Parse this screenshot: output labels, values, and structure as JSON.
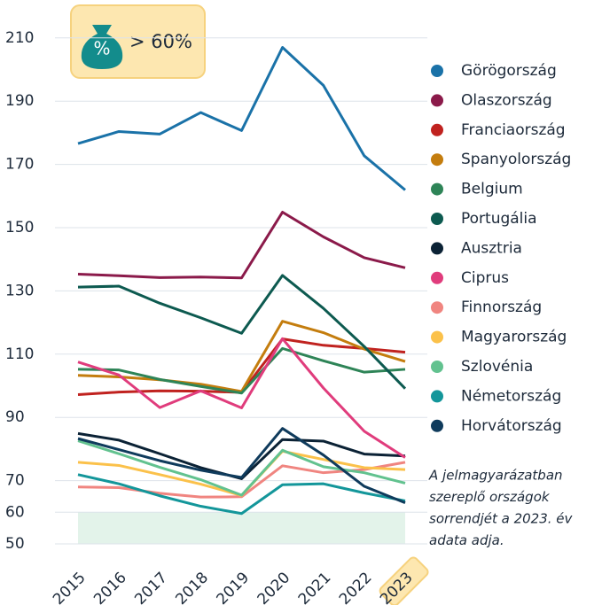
{
  "chart_data": {
    "type": "line",
    "badge": {
      "icon_text": "%",
      "text": "> 60%"
    },
    "categories": [
      "2015",
      "2016",
      "2017",
      "2018",
      "2019",
      "2020",
      "2021",
      "2022",
      "2023"
    ],
    "highlight_category": "2023",
    "ylim": [
      50,
      215
    ],
    "yticks": [
      50,
      60,
      70,
      90,
      110,
      130,
      150,
      170,
      190,
      210
    ],
    "grid": true,
    "threshold": 60,
    "threshold_color": "#e3f3ea",
    "legend_position": "right",
    "note": [
      "A jelmagyarázatban",
      "szereplő országok",
      "sorrendjét a 2023. év",
      "adata adja."
    ],
    "series": [
      {
        "name": "Görögország",
        "color": "#1a72a8",
        "values": [
          176.6,
          180.4,
          179.6,
          186.4,
          180.7,
          207.0,
          195.0,
          172.7,
          161.9
        ]
      },
      {
        "name": "Olaszország",
        "color": "#8b1a4a",
        "values": [
          135.3,
          134.8,
          134.2,
          134.4,
          134.1,
          154.9,
          147.1,
          140.5,
          137.3
        ]
      },
      {
        "name": "Franciaország",
        "color": "#c0221f",
        "values": [
          97.2,
          98.0,
          98.4,
          98.3,
          97.9,
          114.8,
          112.8,
          111.8,
          110.6
        ]
      },
      {
        "name": "Spanyolország",
        "color": "#c47d0e",
        "values": [
          103.3,
          102.8,
          101.9,
          100.5,
          98.2,
          120.4,
          116.8,
          111.6,
          107.7
        ]
      },
      {
        "name": "Belgium",
        "color": "#2e8457",
        "values": [
          105.2,
          105.0,
          102.0,
          99.8,
          97.7,
          111.8,
          107.9,
          104.3,
          105.2
        ]
      },
      {
        "name": "Portugália",
        "color": "#0d5a50",
        "values": [
          131.2,
          131.5,
          126.1,
          121.5,
          116.6,
          134.9,
          124.5,
          112.4,
          99.1
        ]
      },
      {
        "name": "Ausztria",
        "color": "#0b2235",
        "values": [
          84.9,
          82.8,
          78.5,
          74.1,
          70.6,
          83.0,
          82.5,
          78.4,
          77.8
        ]
      },
      {
        "name": "Ciprus",
        "color": "#e03c7c",
        "values": [
          107.5,
          103.4,
          93.1,
          98.4,
          93.0,
          114.9,
          99.3,
          85.6,
          77.3
        ]
      },
      {
        "name": "Finnország",
        "color": "#f08580",
        "values": [
          68.0,
          67.8,
          66.0,
          64.8,
          64.9,
          74.7,
          72.5,
          73.5,
          75.8
        ]
      },
      {
        "name": "Magyarország",
        "color": "#fbc14a",
        "values": [
          75.8,
          74.8,
          71.9,
          68.9,
          65.3,
          79.3,
          76.7,
          74.1,
          73.5
        ]
      },
      {
        "name": "Szlovénia",
        "color": "#62c28f",
        "values": [
          82.6,
          78.5,
          74.2,
          70.3,
          65.4,
          79.6,
          74.4,
          72.5,
          69.2
        ]
      },
      {
        "name": "Németország",
        "color": "#13969a",
        "values": [
          71.9,
          69.0,
          65.2,
          61.9,
          59.6,
          68.7,
          69.0,
          66.1,
          63.6
        ]
      },
      {
        "name": "Horvátország",
        "color": "#0f3b5c",
        "values": [
          83.3,
          79.8,
          76.3,
          73.3,
          71.0,
          86.5,
          78.1,
          68.2,
          63.0
        ]
      }
    ]
  }
}
